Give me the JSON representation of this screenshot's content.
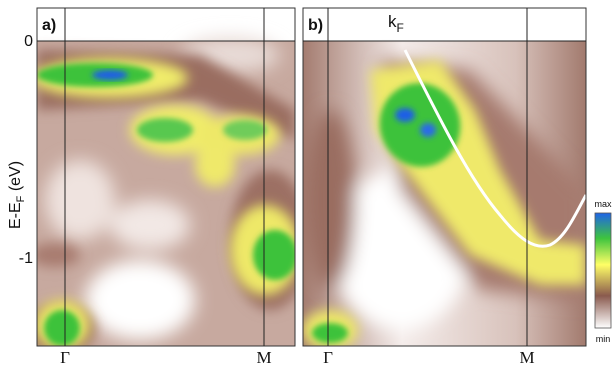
{
  "panels": [
    {
      "label": "a)",
      "x_ticks": [
        "Γ",
        "M"
      ]
    },
    {
      "label": "b)",
      "x_ticks": [
        "Γ",
        "M"
      ],
      "curve_label_main": "k",
      "curve_label_sub": "F"
    }
  ],
  "y_axis": {
    "label_main": "E-E",
    "label_sub": "F",
    "label_unit": " (eV)",
    "ticks": [
      "0",
      "-1"
    ]
  },
  "colorbar": {
    "max_label": "max",
    "min_label": "min",
    "colors": [
      "#ffffff",
      "#8a5a4e",
      "#ffff66",
      "#3ec43e",
      "#1f64e8"
    ]
  },
  "colors": {
    "brown": "#8b5d50",
    "yellow": "#f4f06a",
    "green": "#3cc23a",
    "blue": "#1f5fe6",
    "curve": "#ffffff"
  }
}
